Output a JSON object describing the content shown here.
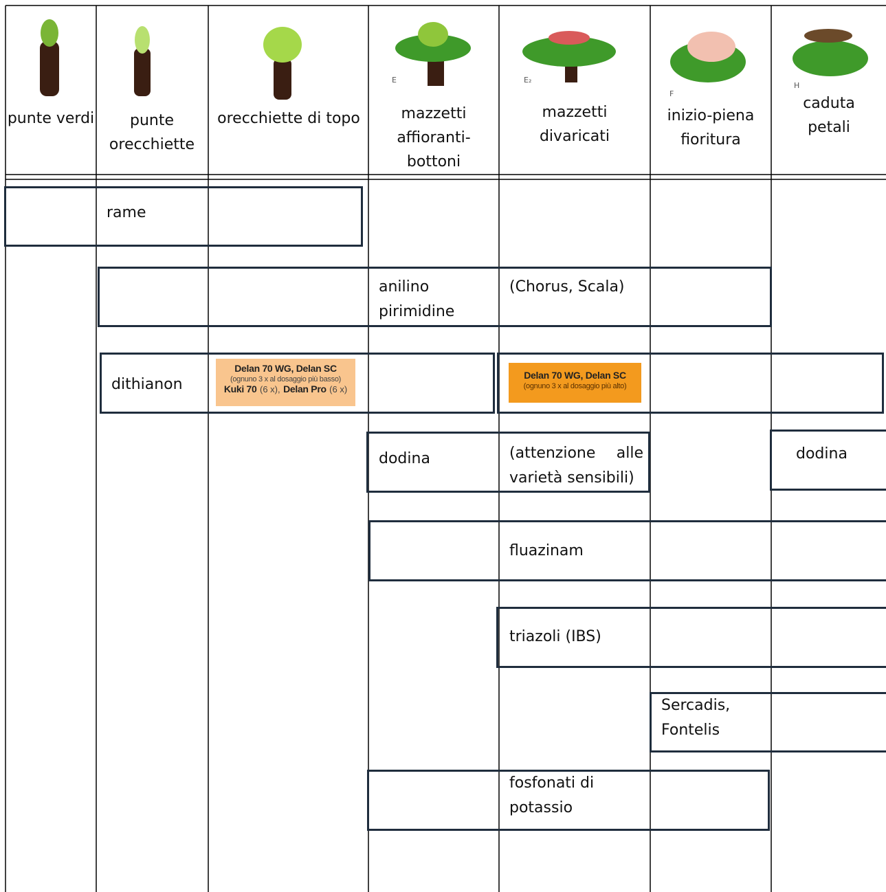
{
  "header": {
    "columns": [
      {
        "label": "punte verdi"
      },
      {
        "label": "punte orecchiette"
      },
      {
        "label": "orecchiette di topo"
      },
      {
        "stage": "E",
        "label": "mazzetti affioranti-bottoni"
      },
      {
        "stage": "E₂",
        "label": "mazzetti divaricati"
      },
      {
        "stage": "F",
        "label": "inizio-piena fioritura"
      },
      {
        "stage": "H",
        "label": "caduta petali"
      }
    ]
  },
  "boxes": [
    {
      "texts": [
        "rame"
      ]
    },
    {
      "texts": [
        "anilino pirimidine",
        "(Chorus, Scala)"
      ]
    },
    {
      "texts": [
        "dithianon"
      ],
      "label": {
        "title": "Delan 70 WG, Delan SC",
        "note": "(ognuno 3 x al dosaggio più basso)",
        "line": [
          "Kuki 70",
          "(6 x),",
          "Delan Pro",
          "(6 x)"
        ]
      }
    },
    {
      "label": {
        "title": "Delan 70 WG, Delan SC",
        "note": "(ognuno 3 x al dosaggio più alto)"
      }
    },
    {
      "texts": [
        "dodina",
        "(attenzione alle varietà sensibili)"
      ]
    },
    {
      "texts": [
        "dodina"
      ]
    },
    {
      "texts": [
        "fluazinam"
      ]
    },
    {
      "texts": [
        "triazoli (IBS)"
      ]
    },
    {
      "texts": [
        "Sercadis, Fontelis"
      ]
    },
    {
      "texts": [
        "fosfonati di potassio"
      ]
    }
  ]
}
